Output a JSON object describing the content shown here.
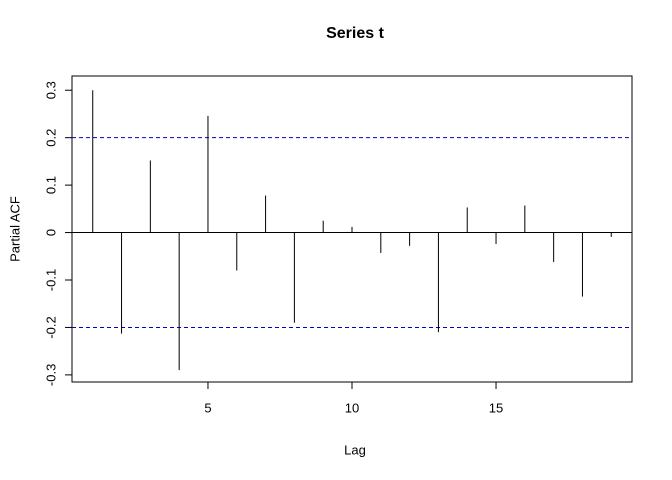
{
  "chart_data": {
    "type": "stem",
    "title": "Series  t",
    "x_label": "Lag",
    "y_label": "Partial ACF",
    "x": [
      1,
      2,
      3,
      4,
      5,
      6,
      7,
      8,
      9,
      10,
      11,
      12,
      13,
      14,
      15,
      16,
      17,
      18,
      19
    ],
    "values": [
      0.3,
      -0.213,
      0.152,
      -0.29,
      0.246,
      -0.08,
      0.078,
      -0.19,
      0.025,
      0.012,
      -0.043,
      -0.028,
      -0.21,
      0.053,
      -0.024,
      0.057,
      -0.062,
      -0.135,
      -0.009
    ],
    "color": "#000000",
    "ci": [
      -0.2,
      0.2
    ],
    "ci_color": "#0000cc",
    "xlim": [
      0.28,
      19.72
    ],
    "xticks": [
      5,
      10,
      15
    ],
    "ylim": [
      -0.315,
      0.33
    ],
    "yticks": [
      -0.3,
      -0.2,
      -0.1,
      0.0,
      0.1,
      0.2,
      0.3
    ]
  }
}
